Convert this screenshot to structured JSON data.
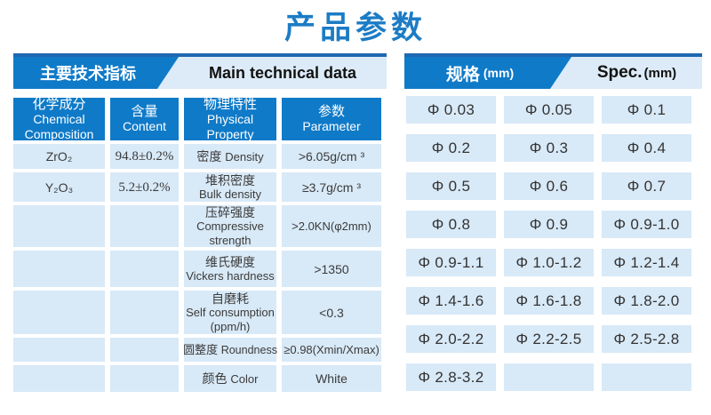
{
  "title": "产品参数",
  "left_panel": {
    "header_zh": "主要技术指标",
    "header_en": "Main technical data",
    "columns": [
      {
        "zh": "化学成分",
        "en": "Chemical Composition"
      },
      {
        "zh": "含量",
        "en": "Content"
      },
      {
        "zh": "物理特性",
        "en": "Physical Property"
      },
      {
        "zh": "参数",
        "en": "Parameter"
      }
    ],
    "rows": [
      {
        "chemical": "ZrO₂",
        "content": "94.8±0.2%",
        "property_zh": "密度",
        "property_en": "Density",
        "parameter": ">6.05g/cm ³"
      },
      {
        "chemical": "Y₂O₃",
        "content": "5.2±0.2%",
        "property_zh": "堆积密度",
        "property_en": "Bulk density",
        "parameter": "≥3.7g/cm ³"
      },
      {
        "chemical": "",
        "content": "",
        "property_zh": "压碎强度",
        "property_en": "Compressive strength",
        "parameter": ">2.0KN(φ2mm)"
      },
      {
        "chemical": "",
        "content": "",
        "property_zh": "维氏硬度",
        "property_en": "Vickers hardness",
        "parameter": ">1350"
      },
      {
        "chemical": "",
        "content": "",
        "property_zh": "自磨耗",
        "property_en": "Self consumption (ppm/h)",
        "parameter": "<0.3"
      },
      {
        "chemical": "",
        "content": "",
        "property_zh": "圆整度",
        "property_en": "Roundness",
        "parameter": "≥0.98(Xmin/Xmax)"
      },
      {
        "chemical": "",
        "content": "",
        "property_zh": "颜色",
        "property_en": "Color",
        "parameter": "White"
      }
    ]
  },
  "right_panel": {
    "header_zh": "规格",
    "header_zh_unit": "(mm)",
    "header_en": "Spec.",
    "header_en_unit": "(mm)",
    "specs": [
      [
        "Φ 0.03",
        "Φ 0.05",
        "Φ 0.1"
      ],
      [
        "Φ 0.2",
        "Φ 0.3",
        "Φ 0.4"
      ],
      [
        "Φ 0.5",
        "Φ 0.6",
        "Φ 0.7"
      ],
      [
        "Φ 0.8",
        "Φ 0.9",
        "Φ 0.9-1.0"
      ],
      [
        "Φ 0.9-1.1",
        "Φ 1.0-1.2",
        "Φ 1.2-1.4"
      ],
      [
        "Φ 1.4-1.6",
        "Φ 1.6-1.8",
        "Φ 1.8-2.0"
      ],
      [
        "Φ 2.0-2.2",
        "Φ 2.2-2.5",
        "Φ 2.5-2.8"
      ],
      [
        "Φ 2.8-3.2",
        "",
        ""
      ]
    ]
  },
  "colors": {
    "brand_blue": "#0f7ac8",
    "accent_dark_blue": "#1e68b2",
    "light_blue_bar": "#dcebf7",
    "cell_bg": "#d8e9f7",
    "title_blue": "#1c7cc5",
    "text_dark": "#3b3b3b"
  }
}
